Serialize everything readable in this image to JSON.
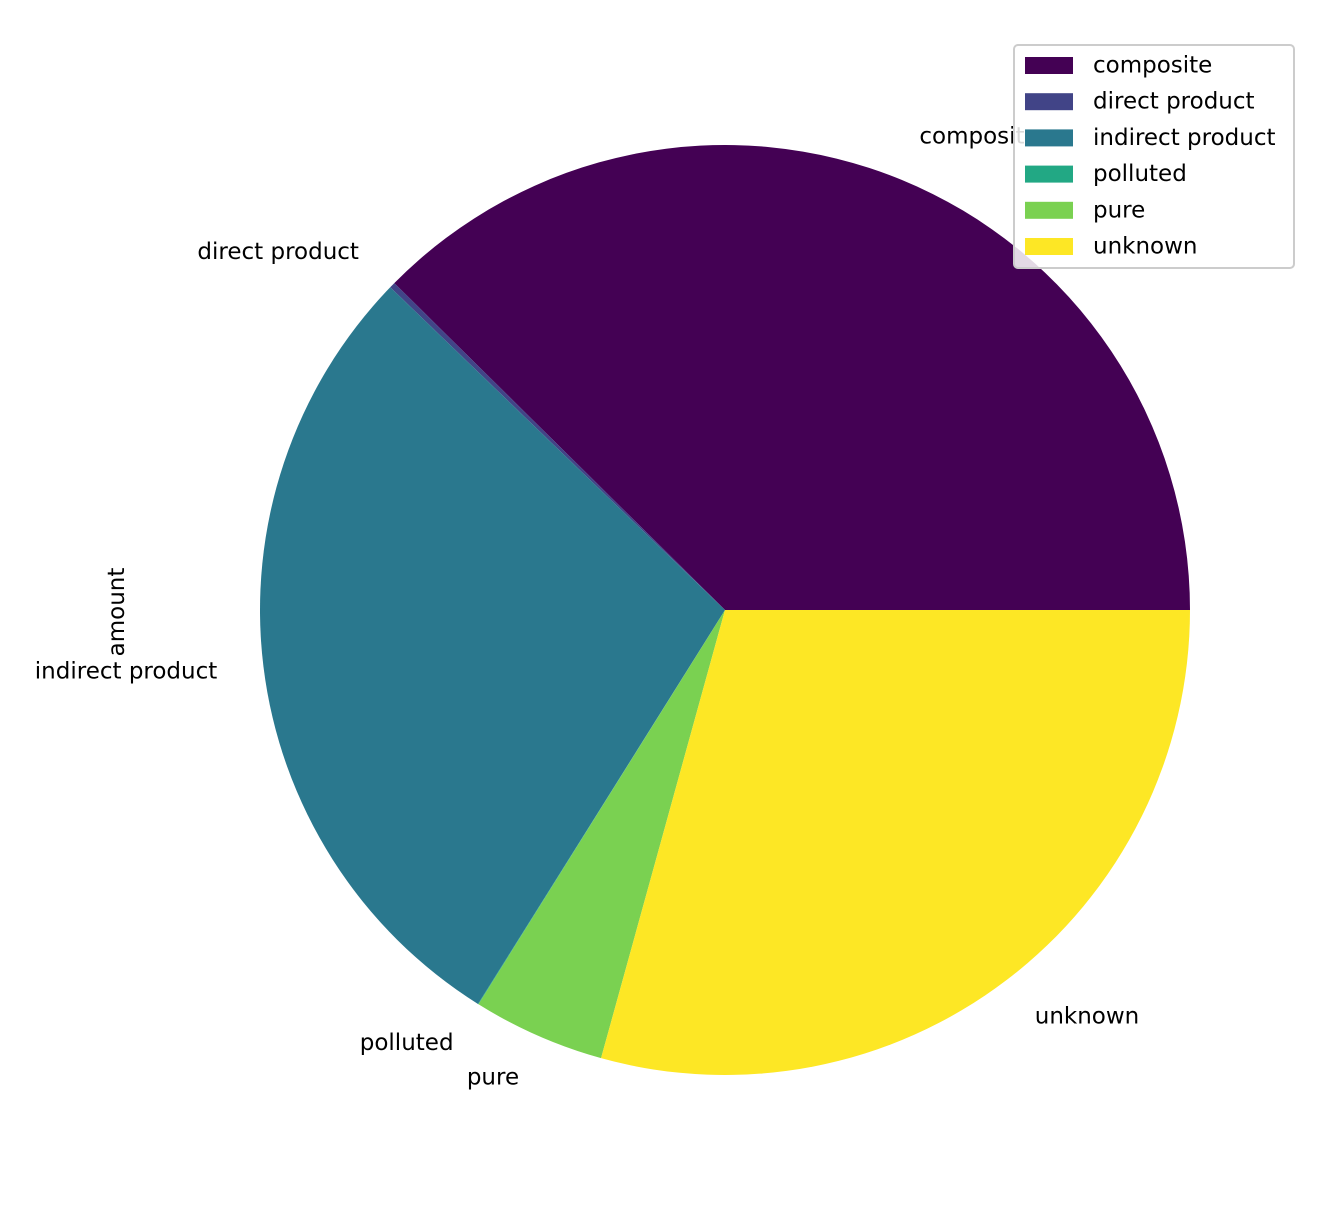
{
  "chart_data": {
    "type": "pie",
    "ylabel": "amount",
    "categories": [
      "composite",
      "direct product",
      "indirect product",
      "polluted",
      "pure",
      "unknown"
    ],
    "values": [
      37.6,
      0.2,
      28.3,
      0.02,
      4.6,
      29.3
    ],
    "colors": [
      "#440154",
      "#414487",
      "#2a788e",
      "#22a884",
      "#7ad151",
      "#fde725"
    ],
    "start_angle_deg": 0,
    "direction": "counterclockwise",
    "legend": {
      "position": "upper right",
      "entries": [
        "composite",
        "direct product",
        "indirect product",
        "polluted",
        "pure",
        "unknown"
      ]
    }
  }
}
